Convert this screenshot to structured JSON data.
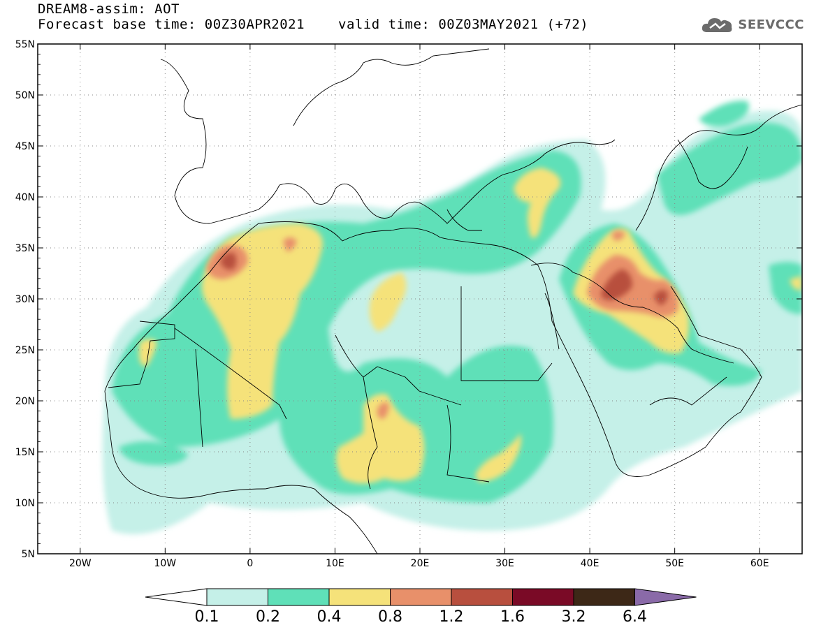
{
  "header": {
    "line1": "DREAM8-assim: AOT",
    "base_time": "Forecast base time: 00Z30APR2021",
    "valid_time": "valid time: 00Z03MAY2021 (+72)"
  },
  "logo": {
    "text": "SEEVCCC",
    "icon": "cloud-icon"
  },
  "map": {
    "lon_range": [
      -25,
      65
    ],
    "lat_range": [
      5,
      55
    ],
    "x_ticks": [
      "20W",
      "10W",
      "0",
      "10E",
      "20E",
      "30E",
      "40E",
      "50E",
      "60E"
    ],
    "x_tick_values": [
      -20,
      -10,
      0,
      10,
      20,
      30,
      40,
      50,
      60
    ],
    "y_ticks": [
      "55N",
      "50N",
      "45N",
      "40N",
      "35N",
      "30N",
      "25N",
      "20N",
      "15N",
      "10N",
      "5N"
    ],
    "y_tick_values": [
      55,
      50,
      45,
      40,
      35,
      30,
      25,
      20,
      15,
      10,
      5
    ],
    "grid": "dotted"
  },
  "colorbar": {
    "labels": [
      "0.1",
      "0.2",
      "0.4",
      "0.8",
      "1.2",
      "1.6",
      "3.2",
      "6.4"
    ],
    "colors": [
      "#c5f0e8",
      "#5fe0b8",
      "#f5e27a",
      "#e8906a",
      "#b84f3e",
      "#7a0a26",
      "#3d2817",
      "#8a6aa8"
    ],
    "under_color": "#ffffff"
  }
}
